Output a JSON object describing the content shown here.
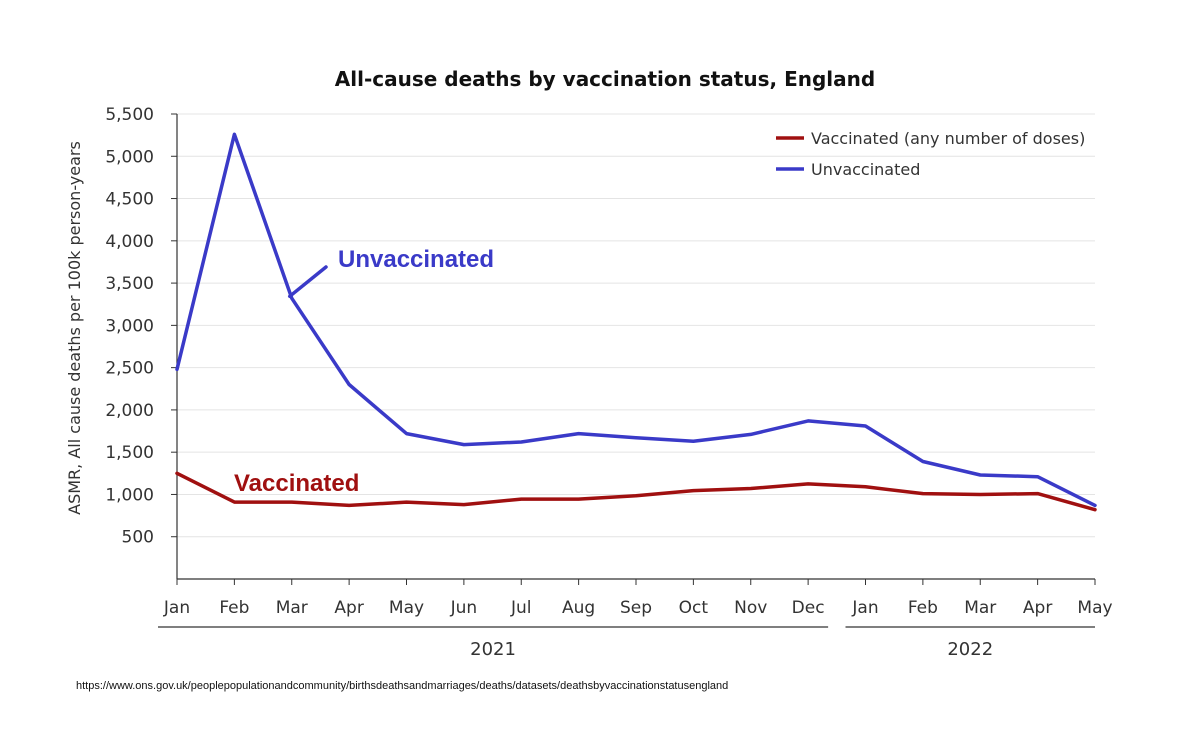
{
  "chart_data": {
    "type": "line",
    "title": "All-cause deaths by vaccination status, England",
    "ylabel": "ASMR, All cause deaths per 100k person-years",
    "ylim": [
      0,
      5500
    ],
    "yticks": [
      500,
      1000,
      1500,
      2000,
      2500,
      3000,
      3500,
      4000,
      4500,
      5000,
      5500
    ],
    "ytick_labels": [
      "500",
      "1,000",
      "1,500",
      "2,000",
      "2,500",
      "3,000",
      "3,500",
      "4,000",
      "4,500",
      "5,000",
      "5,500"
    ],
    "categories": [
      "Jan",
      "Feb",
      "Mar",
      "Apr",
      "May",
      "Jun",
      "Jul",
      "Aug",
      "Sep",
      "Oct",
      "Nov",
      "Dec",
      "Jan",
      "Feb",
      "Mar",
      "Apr",
      "May"
    ],
    "year_groups": [
      {
        "label": "2021",
        "start": 0,
        "end": 11
      },
      {
        "label": "2022",
        "start": 12,
        "end": 16
      }
    ],
    "grid": true,
    "legend_position": "top-right",
    "series": [
      {
        "name": "Vaccinated (any number of doses)",
        "color": "#a01010",
        "values": [
          1250,
          910,
          910,
          870,
          910,
          880,
          945,
          945,
          985,
          1045,
          1070,
          1125,
          1090,
          1010,
          1000,
          1010,
          820
        ]
      },
      {
        "name": "Unvaccinated",
        "color": "#3a3ac8",
        "values": [
          2480,
          5260,
          3320,
          2300,
          1720,
          1590,
          1620,
          1720,
          1670,
          1630,
          1710,
          1870,
          1810,
          1390,
          1230,
          1210,
          870
        ]
      }
    ],
    "annotations": [
      {
        "text": "Unvaccinated",
        "color": "#3a3ac8"
      },
      {
        "text": "Vaccinated",
        "color": "#a01010"
      }
    ]
  },
  "source": "https://www.ons.gov.uk/peoplepopulationandcommunity/birthsdeathsandmarriages/deaths/datasets/deathsbyvaccinationstatusengland"
}
